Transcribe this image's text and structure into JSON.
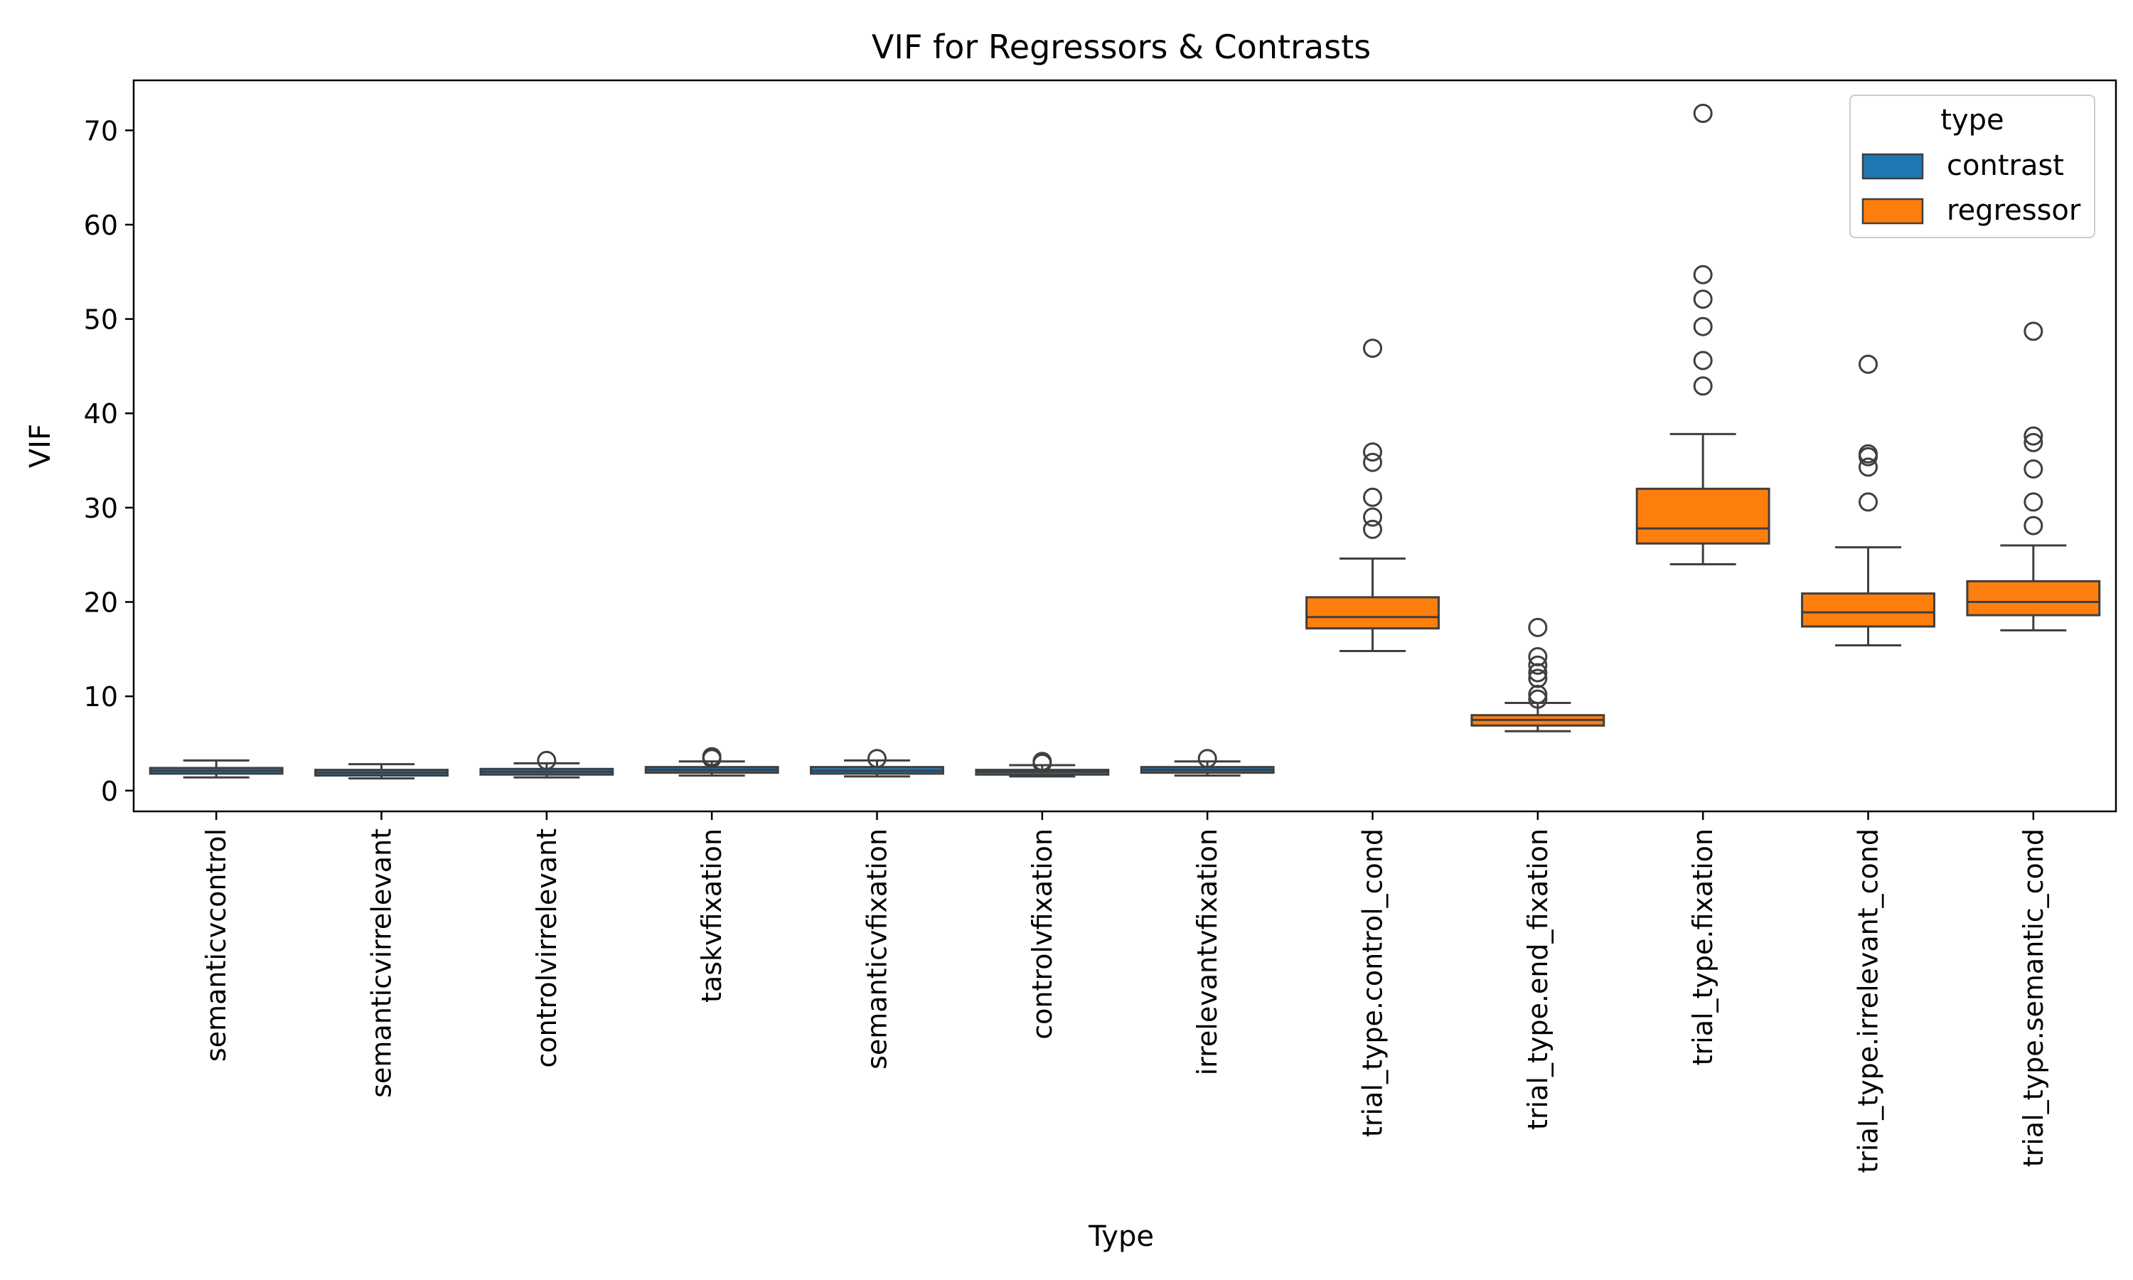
{
  "chart_data": {
    "type": "box",
    "title": "VIF for Regressors & Contrasts",
    "xlabel": "Type",
    "ylabel": "VIF",
    "ylim": [
      -2.2,
      75.3
    ],
    "yticks": [
      0,
      10,
      20,
      30,
      40,
      50,
      60,
      70
    ],
    "categories": [
      "semanticvcontrol",
      "semanticvirrelevant",
      "controlvirrelevant",
      "taskvfixation",
      "semanticvfixation",
      "controlvfixation",
      "irrelevantvfixation",
      "trial_type.control_cond",
      "trial_type.end_fixation",
      "trial_type.fixation",
      "trial_type.irrelevant_cond",
      "trial_type.semantic_cond"
    ],
    "legend": {
      "title": "type",
      "position": "top-right",
      "entries": [
        {
          "label": "contrast",
          "color": "#1f77b4"
        },
        {
          "label": "regressor",
          "color": "#ff7f0e"
        }
      ]
    },
    "boxes": [
      {
        "category": "semanticvcontrol",
        "type": "contrast",
        "whisker_low": 1.4,
        "q1": 1.8,
        "median": 2.1,
        "q3": 2.4,
        "whisker_high": 3.2,
        "outliers": []
      },
      {
        "category": "semanticvirrelevant",
        "type": "contrast",
        "whisker_low": 1.3,
        "q1": 1.6,
        "median": 1.9,
        "q3": 2.2,
        "whisker_high": 2.8,
        "outliers": []
      },
      {
        "category": "controlvirrelevant",
        "type": "contrast",
        "whisker_low": 1.4,
        "q1": 1.7,
        "median": 2.0,
        "q3": 2.3,
        "whisker_high": 2.9,
        "outliers": [
          3.2
        ]
      },
      {
        "category": "taskvfixation",
        "type": "contrast",
        "whisker_low": 1.6,
        "q1": 1.9,
        "median": 2.2,
        "q3": 2.5,
        "whisker_high": 3.1,
        "outliers": [
          3.4,
          3.6
        ]
      },
      {
        "category": "semanticvfixation",
        "type": "contrast",
        "whisker_low": 1.5,
        "q1": 1.8,
        "median": 2.1,
        "q3": 2.5,
        "whisker_high": 3.2,
        "outliers": [
          3.4
        ]
      },
      {
        "category": "controlvfixation",
        "type": "contrast",
        "whisker_low": 1.5,
        "q1": 1.7,
        "median": 2.0,
        "q3": 2.2,
        "whisker_high": 2.7,
        "outliers": [
          2.9,
          3.1
        ]
      },
      {
        "category": "irrelevantvfixation",
        "type": "contrast",
        "whisker_low": 1.6,
        "q1": 1.9,
        "median": 2.2,
        "q3": 2.5,
        "whisker_high": 3.1,
        "outliers": [
          3.4
        ]
      },
      {
        "category": "trial_type.control_cond",
        "type": "regressor",
        "whisker_low": 14.8,
        "q1": 17.2,
        "median": 18.4,
        "q3": 20.5,
        "whisker_high": 24.6,
        "outliers": [
          27.7,
          29.0,
          31.1,
          34.8,
          35.9,
          46.9
        ]
      },
      {
        "category": "trial_type.end_fixation",
        "type": "regressor",
        "whisker_low": 6.3,
        "q1": 6.9,
        "median": 7.5,
        "q3": 8.0,
        "whisker_high": 9.3,
        "outliers": [
          9.7,
          10.2,
          11.9,
          12.5,
          13.3,
          14.2,
          17.3
        ]
      },
      {
        "category": "trial_type.fixation",
        "type": "regressor",
        "whisker_low": 24.0,
        "q1": 26.2,
        "median": 27.8,
        "q3": 32.0,
        "whisker_high": 37.8,
        "outliers": [
          42.9,
          45.6,
          49.2,
          52.1,
          54.7,
          71.8
        ]
      },
      {
        "category": "trial_type.irrelevant_cond",
        "type": "regressor",
        "whisker_low": 15.4,
        "q1": 17.4,
        "median": 18.9,
        "q3": 20.9,
        "whisker_high": 25.8,
        "outliers": [
          30.6,
          34.3,
          35.4,
          35.7,
          45.2
        ]
      },
      {
        "category": "trial_type.semantic_cond",
        "type": "regressor",
        "whisker_low": 17.0,
        "q1": 18.6,
        "median": 20.0,
        "q3": 22.2,
        "whisker_high": 26.0,
        "outliers": [
          28.1,
          30.6,
          34.1,
          36.9,
          37.6,
          48.7
        ]
      }
    ]
  }
}
